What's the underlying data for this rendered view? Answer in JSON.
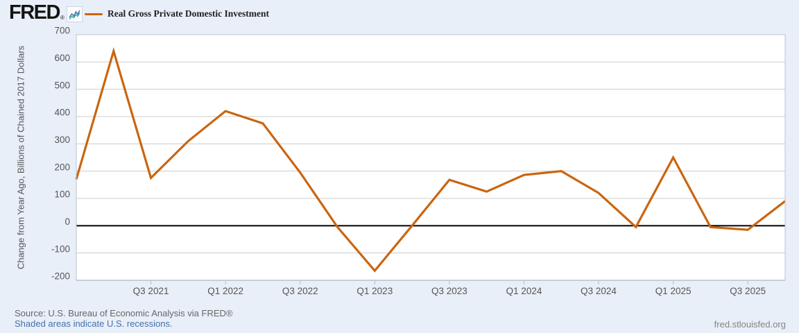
{
  "header": {
    "logo_text": "FRED",
    "registered_mark": "®",
    "logo_icon": "fred-mini-linechart-icon",
    "legend": {
      "series_label": "Real Gross Private Domestic Investment",
      "swatch_color": "#ca6510"
    }
  },
  "chart_data": {
    "type": "line",
    "title": "Real Gross Private Domestic Investment",
    "ylabel": "Change from Year Ago, Billions of Chained 2017 Dollars",
    "xlabel": "",
    "ylim": [
      -200,
      700
    ],
    "y_ticks": [
      700,
      600,
      500,
      400,
      300,
      200,
      100,
      0,
      -100,
      -200
    ],
    "grid": "horizontal",
    "zero_line": true,
    "legend_position": "top-left",
    "series_color": "#ca6510",
    "x": [
      "Q1 2021",
      "Q2 2021",
      "Q3 2021",
      "Q4 2021",
      "Q1 2022",
      "Q2 2022",
      "Q3 2022",
      "Q4 2022",
      "Q1 2023",
      "Q2 2023",
      "Q3 2023",
      "Q4 2023",
      "Q1 2024",
      "Q2 2024",
      "Q3 2024",
      "Q4 2024",
      "Q1 2025",
      "Q2 2025",
      "Q3 2025",
      "Q4 2025"
    ],
    "values": [
      170,
      640,
      175,
      310,
      420,
      375,
      195,
      -5,
      -165,
      0,
      168,
      125,
      186,
      200,
      120,
      -5,
      250,
      -5,
      -15,
      90
    ],
    "x_tick_labels": [
      {
        "label": "Q3 2021",
        "index": 2
      },
      {
        "label": "Q1 2022",
        "index": 4
      },
      {
        "label": "Q3 2022",
        "index": 6
      },
      {
        "label": "Q1 2023",
        "index": 8
      },
      {
        "label": "Q3 2023",
        "index": 10
      },
      {
        "label": "Q1 2024",
        "index": 12
      },
      {
        "label": "Q3 2024",
        "index": 14
      },
      {
        "label": "Q1 2025",
        "index": 16
      },
      {
        "label": "Q3 2025",
        "index": 18
      }
    ]
  },
  "colors": {
    "page_background": "#e9eff8",
    "plot_background": "#ffffff",
    "gridline": "#cccccc",
    "plot_border": "#b9c3d1",
    "zero_line": "#000000",
    "axis_text": "#555555",
    "icon_line_blue": "#3a66a0",
    "icon_line_teal": "#2fa3a3"
  },
  "footer": {
    "source_line": "Source: U.S. Bureau of Economic Analysis via FRED®",
    "recession_note": "Shaded areas indicate U.S. recessions.",
    "site_link": "fred.stlouisfed.org"
  }
}
